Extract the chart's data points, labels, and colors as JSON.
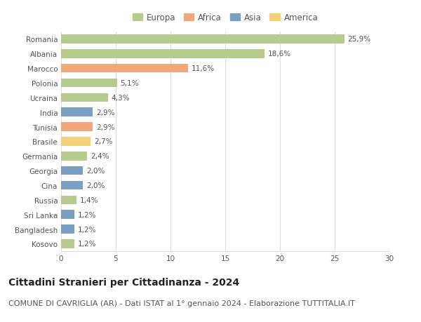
{
  "categories": [
    "Romania",
    "Albania",
    "Marocco",
    "Polonia",
    "Ucraina",
    "India",
    "Tunisia",
    "Brasile",
    "Germania",
    "Georgia",
    "Cina",
    "Russia",
    "Sri Lanka",
    "Bangladesh",
    "Kosovo"
  ],
  "values": [
    25.9,
    18.6,
    11.6,
    5.1,
    4.3,
    2.9,
    2.9,
    2.7,
    2.4,
    2.0,
    2.0,
    1.4,
    1.2,
    1.2,
    1.2
  ],
  "labels": [
    "25,9%",
    "18,6%",
    "11,6%",
    "5,1%",
    "4,3%",
    "2,9%",
    "2,9%",
    "2,7%",
    "2,4%",
    "2,0%",
    "2,0%",
    "1,4%",
    "1,2%",
    "1,2%",
    "1,2%"
  ],
  "continents": [
    "Europa",
    "Europa",
    "Africa",
    "Europa",
    "Europa",
    "Asia",
    "Africa",
    "America",
    "Europa",
    "Asia",
    "Asia",
    "Europa",
    "Asia",
    "Asia",
    "Europa"
  ],
  "continent_colors": {
    "Europa": "#b5cc8e",
    "Africa": "#f0a87a",
    "Asia": "#7a9fc2",
    "America": "#f5d07a"
  },
  "legend_order": [
    "Europa",
    "Africa",
    "Asia",
    "America"
  ],
  "xlim": [
    0,
    30
  ],
  "xticks": [
    0,
    5,
    10,
    15,
    20,
    25,
    30
  ],
  "title": "Cittadini Stranieri per Cittadinanza - 2024",
  "subtitle": "COMUNE DI CAVRIGLIA (AR) - Dati ISTAT al 1° gennaio 2024 - Elaborazione TUTTITALIA.IT",
  "title_fontsize": 10,
  "subtitle_fontsize": 8,
  "label_fontsize": 7.5,
  "tick_fontsize": 7.5,
  "legend_fontsize": 8.5,
  "bar_height": 0.6,
  "background_color": "#ffffff",
  "grid_color": "#dddddd"
}
